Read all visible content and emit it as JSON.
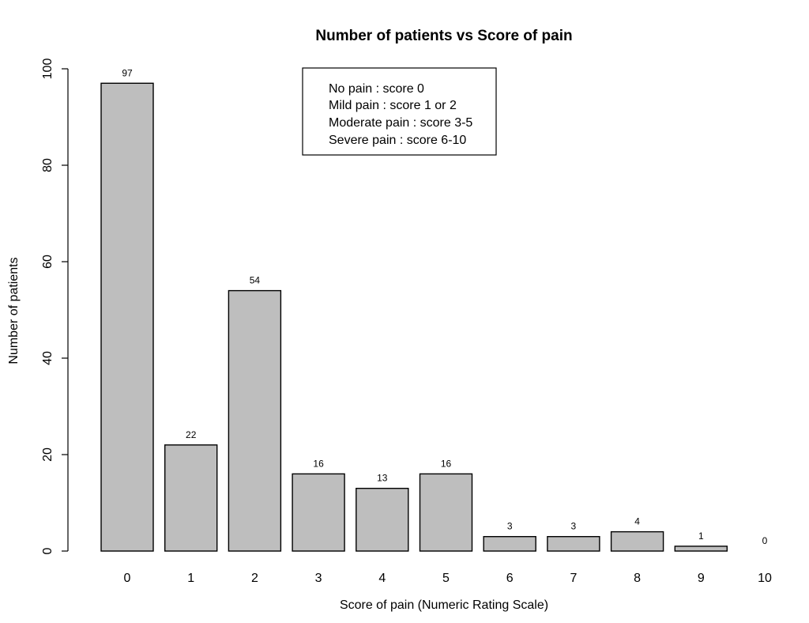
{
  "chart_data": {
    "type": "bar",
    "title": "Number of patients vs Score of pain",
    "xlabel": "Score of pain (Numeric Rating Scale)",
    "ylabel": "Number of patients",
    "categories": [
      "0",
      "1",
      "2",
      "3",
      "4",
      "5",
      "6",
      "7",
      "8",
      "9",
      "10"
    ],
    "values": [
      97,
      22,
      54,
      16,
      13,
      16,
      3,
      3,
      4,
      1,
      0
    ],
    "ylim": [
      0,
      100
    ],
    "yticks": [
      "0",
      "20",
      "40",
      "60",
      "80",
      "100"
    ],
    "grid": false,
    "bar_color": "#bebebe",
    "edge_color": "#000000",
    "legend": {
      "placement": "top-center",
      "lines": [
        "No pain : score 0",
        "Mild pain : score 1 or 2",
        "Moderate pain : score 3-5",
        "Severe pain : score 6-10"
      ]
    }
  }
}
